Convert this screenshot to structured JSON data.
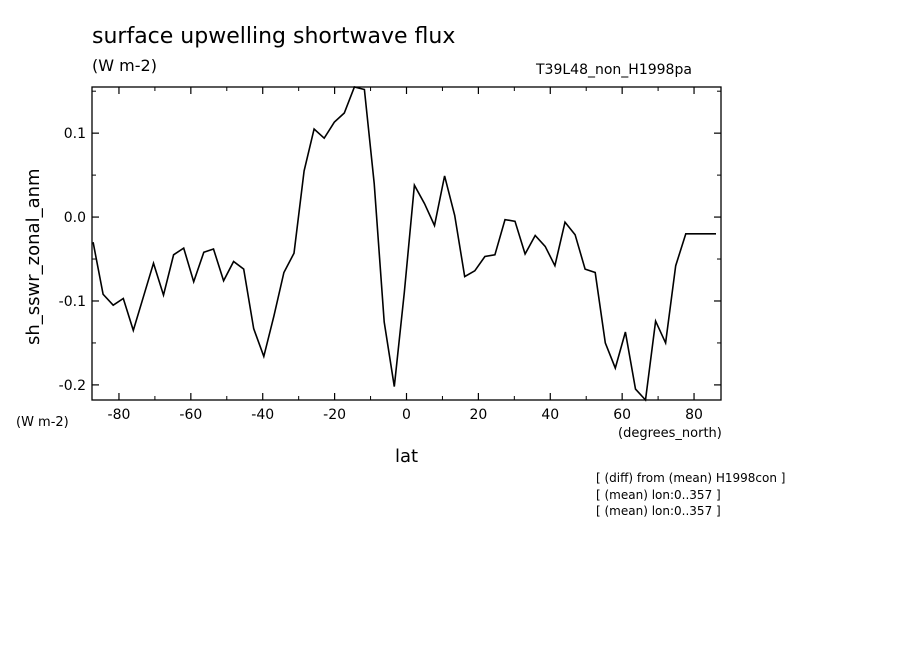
{
  "chart_data": {
    "type": "line",
    "title": "surface upwelling shortwave flux",
    "units": "(W m-2)",
    "run_label": "T39L48_non_H1998pa",
    "ylabel": "sh_sswr_zonal_anm",
    "y_units": "(W m-2)",
    "xlabel": "lat",
    "x_units": "(degrees_north)",
    "xlim": [
      -87.5,
      87.5
    ],
    "ylim": [
      -0.218,
      0.155
    ],
    "xticks": [
      -80,
      -60,
      -40,
      -20,
      0,
      20,
      40,
      60,
      80
    ],
    "yticks": [
      -0.2,
      -0.1,
      0.0,
      0.1
    ],
    "ytick_labels": [
      "-0.2",
      "-0.1",
      "0.0",
      "0.1"
    ],
    "grid": false,
    "line_color": "#000000",
    "series": [
      {
        "x": [
          -87.2,
          -84.4,
          -81.6,
          -78.8,
          -76.0,
          -73.2,
          -70.4,
          -67.6,
          -64.8,
          -62.0,
          -59.2,
          -56.4,
          -53.7,
          -50.9,
          -48.1,
          -45.3,
          -42.5,
          -39.7,
          -36.9,
          -34.1,
          -31.3,
          -28.5,
          -25.7,
          -22.9,
          -20.1,
          -17.3,
          -14.5,
          -11.7,
          -9.0,
          -6.2,
          -3.4,
          -0.6,
          2.2,
          5.0,
          7.8,
          10.6,
          13.4,
          16.2,
          19.0,
          21.8,
          24.6,
          27.4,
          30.2,
          33.0,
          35.8,
          38.6,
          41.3,
          44.1,
          46.9,
          49.7,
          52.5,
          55.3,
          58.1,
          60.9,
          63.7,
          66.5,
          69.3,
          72.1,
          74.9,
          77.7,
          80.5,
          83.3,
          86.1
        ],
        "values": [
          -0.03,
          -0.092,
          -0.105,
          -0.097,
          -0.135,
          -0.095,
          -0.055,
          -0.093,
          -0.045,
          -0.037,
          -0.077,
          -0.042,
          -0.038,
          -0.076,
          -0.053,
          -0.062,
          -0.133,
          -0.166,
          -0.118,
          -0.066,
          -0.043,
          0.055,
          0.105,
          0.094,
          0.113,
          0.124,
          0.155,
          0.152,
          0.04,
          -0.125,
          -0.202,
          -0.09,
          0.038,
          0.016,
          -0.01,
          0.049,
          0.002,
          -0.071,
          -0.064,
          -0.047,
          -0.045,
          -0.003,
          -0.005,
          -0.044,
          -0.022,
          -0.035,
          -0.058,
          -0.006,
          -0.021,
          -0.062,
          -0.066,
          -0.15,
          -0.18,
          -0.137,
          -0.205,
          -0.218,
          -0.124,
          -0.15,
          -0.058,
          -0.02,
          -0.02,
          -0.02,
          -0.02
        ]
      }
    ]
  },
  "notes": [
    "[ (diff) from (mean) H1998con ]",
    "[ (mean) lon:0..357 ]",
    "[ (mean) lon:0..357 ]"
  ]
}
